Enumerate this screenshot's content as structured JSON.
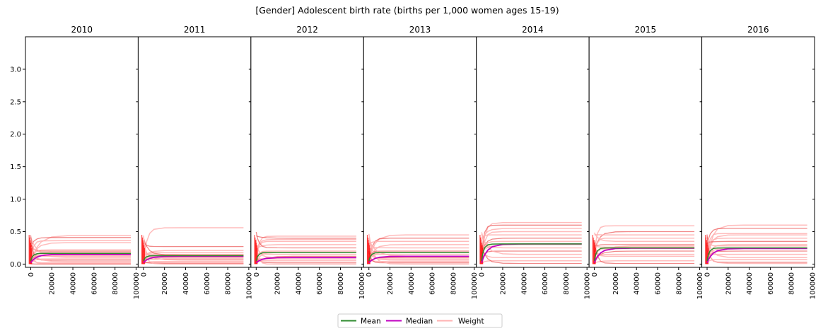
{
  "chart_data": {
    "type": "line",
    "title": "[Gender] Adolescent birth rate (births per 1,000 women ages 15-19)",
    "panels": [
      {
        "label": "2010",
        "mean": 0.165,
        "median": 0.15
      },
      {
        "label": "2011",
        "mean": 0.13,
        "median": 0.12
      },
      {
        "label": "2012",
        "mean": 0.18,
        "median": 0.1
      },
      {
        "label": "2013",
        "mean": 0.18,
        "median": 0.12
      },
      {
        "label": "2014",
        "mean": 0.31,
        "median": 0.31
      },
      {
        "label": "2015",
        "mean": 0.25,
        "median": 0.245
      },
      {
        "label": "2016",
        "mean": 0.25,
        "median": 0.24
      }
    ],
    "x_ticks": [
      0,
      20000,
      40000,
      60000,
      80000,
      100000
    ],
    "xlim": [
      -5000,
      102000
    ],
    "y_ticks": [
      0.0,
      0.5,
      1.0,
      1.5,
      2.0,
      2.5,
      3.0
    ],
    "y_tick_labels": [
      "0.0",
      "0.5",
      "1.0",
      "1.5",
      "2.0",
      "2.5",
      "3.0"
    ],
    "ylim": [
      -0.05,
      3.5
    ],
    "weight_finals": [
      [
        0.44,
        0.41,
        0.36,
        0.33,
        0.22,
        0.2,
        0.19,
        0.18,
        0.16,
        0.14,
        0.12,
        0.1,
        0.08,
        0.06,
        0.04,
        0.02,
        0.01,
        0.0
      ],
      [
        0.56,
        0.27,
        0.21,
        0.18,
        0.15,
        0.14,
        0.12,
        0.11,
        0.1,
        0.08,
        0.06,
        0.04,
        0.02,
        0.01,
        0.0
      ],
      [
        0.43,
        0.4,
        0.38,
        0.35,
        0.3,
        0.25,
        0.2,
        0.18,
        0.15,
        0.12,
        0.1,
        0.08,
        0.05,
        0.02,
        0.0
      ],
      [
        0.45,
        0.4,
        0.35,
        0.3,
        0.25,
        0.2,
        0.18,
        0.15,
        0.12,
        0.1,
        0.08,
        0.06,
        0.04,
        0.02,
        0.0
      ],
      [
        0.64,
        0.6,
        0.55,
        0.5,
        0.45,
        0.4,
        0.35,
        0.3,
        0.25,
        0.2,
        0.15,
        0.1,
        0.05,
        0.01
      ],
      [
        0.59,
        0.5,
        0.45,
        0.4,
        0.35,
        0.3,
        0.28,
        0.26,
        0.24,
        0.2,
        0.15,
        0.12,
        0.05,
        0.01
      ],
      [
        0.6,
        0.55,
        0.47,
        0.45,
        0.4,
        0.35,
        0.3,
        0.28,
        0.25,
        0.2,
        0.15,
        0.1,
        0.07,
        0.03,
        0.01
      ]
    ],
    "legend": [
      "Mean",
      "Median",
      "Weight"
    ],
    "legend_position": "bottom-center",
    "colors": {
      "mean": "#2e8b2e",
      "median": "#c000c0",
      "weight": "#ffb0b0",
      "weight_dark": "#e83a3a",
      "start": "#ff0000",
      "frame": "#000000"
    }
  }
}
